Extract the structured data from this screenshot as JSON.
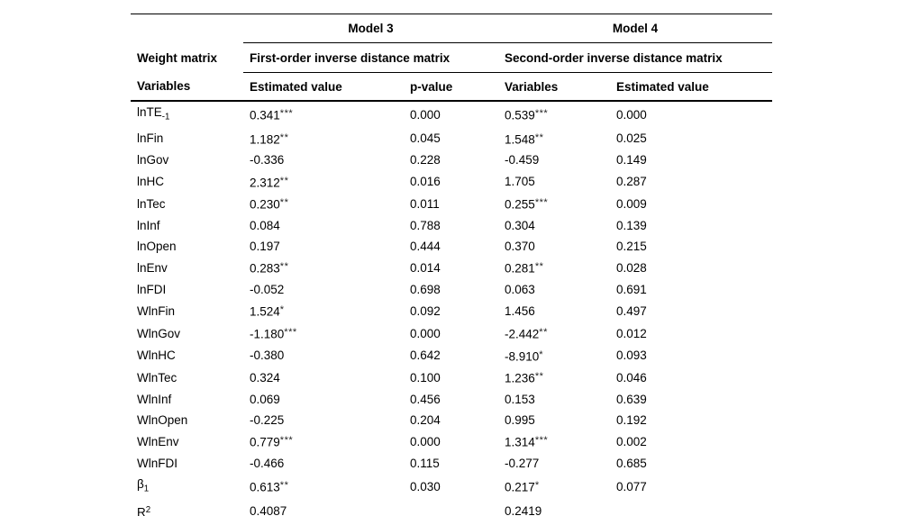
{
  "table": {
    "model3_label": "Model 3",
    "model4_label": "Model 4",
    "weight_matrix_label": "Weight matrix",
    "model3_matrix": "First-order inverse distance matrix",
    "model4_matrix": "Second-order inverse distance matrix",
    "column_headers": [
      "Variables",
      "Estimated value",
      "p-value",
      "Variables",
      "Estimated value"
    ],
    "rows": [
      {
        "variable": {
          "text": "lnTE",
          "sub": "-1"
        },
        "cells": [
          {
            "v": "0.341",
            "stars": "***"
          },
          {
            "v": "0.000"
          },
          {
            "v": "0.539",
            "stars": "***"
          },
          {
            "v": "0.000"
          }
        ]
      },
      {
        "variable": {
          "text": "lnFin"
        },
        "cells": [
          {
            "v": "1.182",
            "stars": "**"
          },
          {
            "v": "0.045"
          },
          {
            "v": "1.548",
            "stars": "**"
          },
          {
            "v": "0.025"
          }
        ]
      },
      {
        "variable": {
          "text": "lnGov"
        },
        "cells": [
          {
            "v": "-0.336"
          },
          {
            "v": "0.228"
          },
          {
            "v": "-0.459"
          },
          {
            "v": "0.149"
          }
        ]
      },
      {
        "variable": {
          "text": "lnHC"
        },
        "cells": [
          {
            "v": "2.312",
            "stars": "**"
          },
          {
            "v": "0.016"
          },
          {
            "v": "1.705"
          },
          {
            "v": "0.287"
          }
        ]
      },
      {
        "variable": {
          "text": "lnTec"
        },
        "cells": [
          {
            "v": "0.230",
            "stars": "**"
          },
          {
            "v": "0.011"
          },
          {
            "v": "0.255",
            "stars": "***"
          },
          {
            "v": "0.009"
          }
        ]
      },
      {
        "variable": {
          "text": "lnInf"
        },
        "cells": [
          {
            "v": "0.084"
          },
          {
            "v": "0.788"
          },
          {
            "v": "0.304"
          },
          {
            "v": "0.139"
          }
        ]
      },
      {
        "variable": {
          "text": "lnOpen"
        },
        "cells": [
          {
            "v": "0.197"
          },
          {
            "v": "0.444"
          },
          {
            "v": "0.370"
          },
          {
            "v": "0.215"
          }
        ]
      },
      {
        "variable": {
          "text": "lnEnv"
        },
        "cells": [
          {
            "v": "0.283",
            "stars": "**"
          },
          {
            "v": "0.014"
          },
          {
            "v": "0.281",
            "stars": "**"
          },
          {
            "v": "0.028"
          }
        ]
      },
      {
        "variable": {
          "text": "lnFDI"
        },
        "cells": [
          {
            "v": "-0.052"
          },
          {
            "v": "0.698"
          },
          {
            "v": "0.063"
          },
          {
            "v": "0.691"
          }
        ]
      },
      {
        "variable": {
          "text": "WlnFin"
        },
        "cells": [
          {
            "v": "1.524",
            "stars": "*"
          },
          {
            "v": "0.092"
          },
          {
            "v": "1.456"
          },
          {
            "v": "0.497"
          }
        ]
      },
      {
        "variable": {
          "text": "WlnGov"
        },
        "cells": [
          {
            "v": "-1.180",
            "stars": "***"
          },
          {
            "v": "0.000"
          },
          {
            "v": "-2.442",
            "stars": "**"
          },
          {
            "v": "0.012"
          }
        ]
      },
      {
        "variable": {
          "text": "WlnHC"
        },
        "cells": [
          {
            "v": "-0.380"
          },
          {
            "v": "0.642"
          },
          {
            "v": "-8.910",
            "stars": "*"
          },
          {
            "v": "0.093"
          }
        ]
      },
      {
        "variable": {
          "text": "WlnTec"
        },
        "cells": [
          {
            "v": "0.324"
          },
          {
            "v": "0.100"
          },
          {
            "v": "1.236",
            "stars": "**"
          },
          {
            "v": "0.046"
          }
        ]
      },
      {
        "variable": {
          "text": "WlnInf"
        },
        "cells": [
          {
            "v": "0.069"
          },
          {
            "v": "0.456"
          },
          {
            "v": "0.153"
          },
          {
            "v": "0.639"
          }
        ]
      },
      {
        "variable": {
          "text": "WlnOpen"
        },
        "cells": [
          {
            "v": "-0.225"
          },
          {
            "v": "0.204"
          },
          {
            "v": "0.995"
          },
          {
            "v": "0.192"
          }
        ]
      },
      {
        "variable": {
          "text": "WlnEnv"
        },
        "cells": [
          {
            "v": "0.779",
            "stars": "***"
          },
          {
            "v": "0.000"
          },
          {
            "v": "1.314",
            "stars": "***"
          },
          {
            "v": "0.002"
          }
        ]
      },
      {
        "variable": {
          "text": "WlnFDI"
        },
        "cells": [
          {
            "v": "-0.466"
          },
          {
            "v": "0.115"
          },
          {
            "v": "-0.277"
          },
          {
            "v": "0.685"
          }
        ]
      },
      {
        "variable": {
          "text": "β",
          "sub": "1"
        },
        "cells": [
          {
            "v": "0.613",
            "stars": "**"
          },
          {
            "v": "0.030"
          },
          {
            "v": "0.217",
            "stars": "*"
          },
          {
            "v": "0.077"
          }
        ]
      },
      {
        "variable": {
          "text": "R",
          "sup": "2"
        },
        "cells": [
          {
            "v": "0.4087"
          },
          {
            "v": ""
          },
          {
            "v": "0.2419"
          },
          {
            "v": ""
          }
        ]
      }
    ]
  }
}
